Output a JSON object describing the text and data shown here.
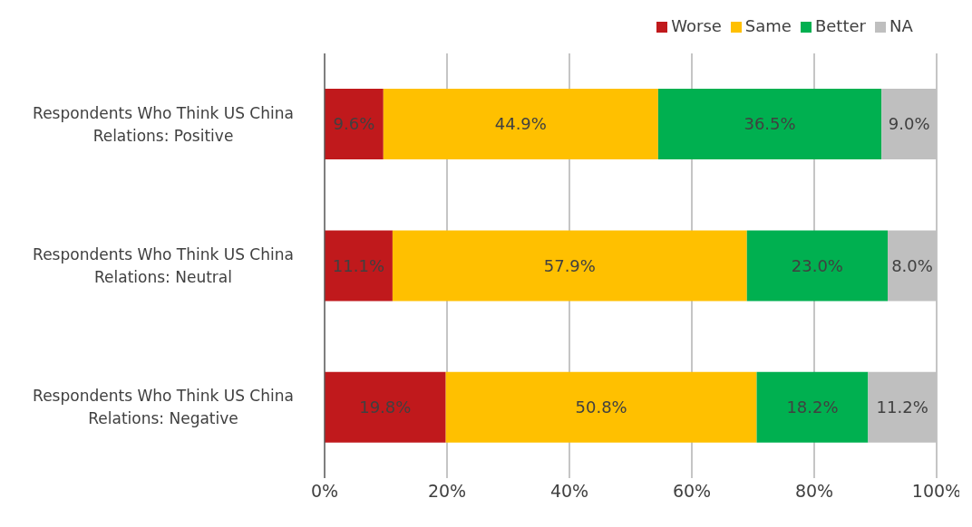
{
  "chart_data": {
    "type": "bar",
    "orientation": "horizontal",
    "stacked": true,
    "categories": [
      "Respondents Who Think US China Relations: Positive",
      "Respondents Who Think US China Relations: Neutral",
      "Respondents Who Think US China Relations: Negative"
    ],
    "series": [
      {
        "name": "Worse",
        "color": "#c0191c",
        "values": [
          9.6,
          11.1,
          19.8
        ],
        "value_labels": [
          "9.6%",
          "11.1%",
          "19.8%"
        ]
      },
      {
        "name": "Same",
        "color": "#ffc000",
        "values": [
          44.9,
          57.9,
          50.8
        ],
        "value_labels": [
          "44.9%",
          "57.9%",
          "50.8%"
        ]
      },
      {
        "name": "Better",
        "color": "#00b050",
        "values": [
          36.5,
          23.0,
          18.2
        ],
        "value_labels": [
          "36.5%",
          "23.0%",
          "18.2%"
        ]
      },
      {
        "name": "NA",
        "color": "#bfbfbf",
        "values": [
          9.0,
          8.0,
          11.2
        ],
        "value_labels": [
          "9.0%",
          "8.0%",
          "11.2%"
        ]
      }
    ],
    "xlim": [
      0,
      100
    ],
    "xticks": [
      {
        "value": 0,
        "label": "0%"
      },
      {
        "value": 20,
        "label": "20%"
      },
      {
        "value": 40,
        "label": "40%"
      },
      {
        "value": 60,
        "label": "60%"
      },
      {
        "value": 80,
        "label": "80%"
      },
      {
        "value": 100,
        "label": "100%"
      }
    ],
    "grid": "x",
    "legend": "top"
  }
}
